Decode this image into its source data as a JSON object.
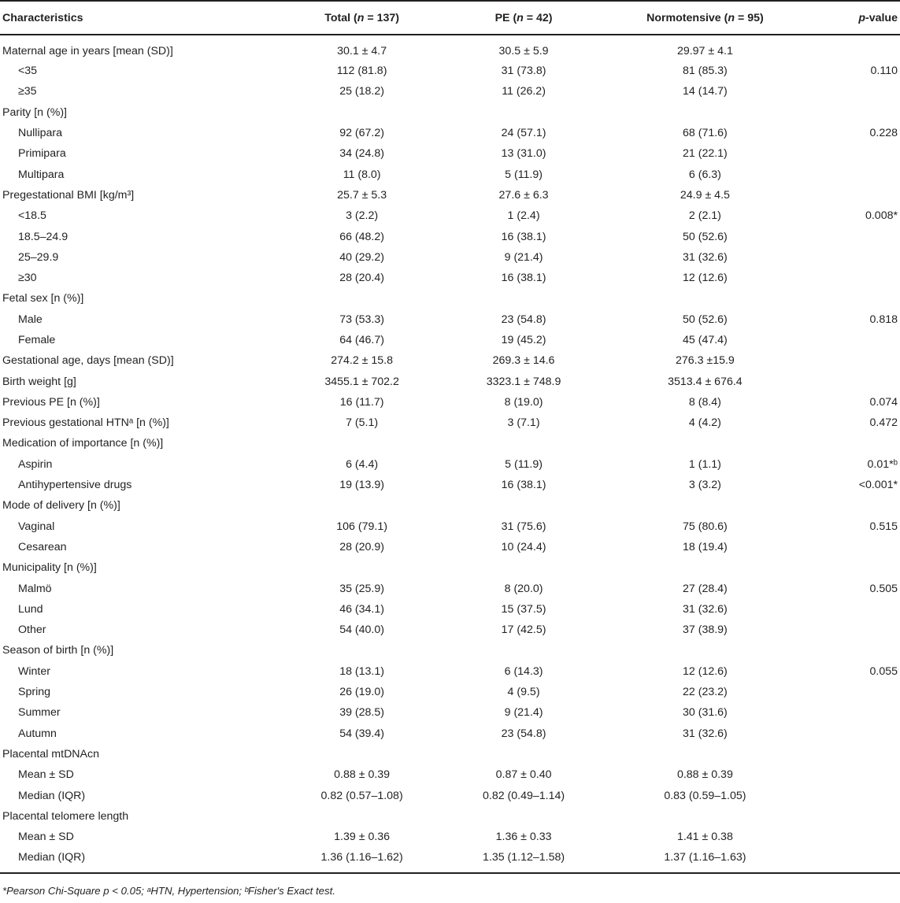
{
  "header": {
    "characteristics": "Characteristics",
    "total": "Total (",
    "total_n": "n",
    "total_rest": " = 137)",
    "pe": "PE (",
    "pe_n": "n",
    "pe_rest": " = 42)",
    "normo": "Normotensive (",
    "normo_n": "n",
    "normo_rest": " = 95)",
    "p": "p",
    "p_rest": "-value"
  },
  "rows": [
    {
      "label": "Maternal age in years [mean (SD)]",
      "total": "30.1 ± 4.7",
      "pe": "30.5 ± 5.9",
      "normo": "29.97 ± 4.1",
      "p": ""
    },
    {
      "label": "<35",
      "total": "112 (81.8)",
      "pe": "31 (73.8)",
      "normo": "81 (85.3)",
      "p": "0.110"
    },
    {
      "label": "≥35",
      "total": "25 (18.2)",
      "pe": "11 (26.2)",
      "normo": "14 (14.7)",
      "p": ""
    },
    {
      "label": "Parity [n (%)]",
      "total": "",
      "pe": "",
      "normo": "",
      "p": ""
    },
    {
      "label": "Nullipara",
      "total": "92 (67.2)",
      "pe": "24 (57.1)",
      "normo": "68 (71.6)",
      "p": "0.228"
    },
    {
      "label": "Primipara",
      "total": "34 (24.8)",
      "pe": "13 (31.0)",
      "normo": "21 (22.1)",
      "p": ""
    },
    {
      "label": "Multipara",
      "total": "11 (8.0)",
      "pe": "5 (11.9)",
      "normo": "6 (6.3)",
      "p": ""
    },
    {
      "label": "Pregestational BMI [kg/m³]",
      "total": "25.7 ± 5.3",
      "pe": "27.6 ± 6.3",
      "normo": "24.9 ± 4.5",
      "p": ""
    },
    {
      "label": "<18.5",
      "total": "3 (2.2)",
      "pe": "1 (2.4)",
      "normo": "2 (2.1)",
      "p": "0.008*"
    },
    {
      "label": "18.5–24.9",
      "total": "66 (48.2)",
      "pe": "16 (38.1)",
      "normo": "50 (52.6)",
      "p": ""
    },
    {
      "label": "25–29.9",
      "total": "40 (29.2)",
      "pe": "9 (21.4)",
      "normo": "31 (32.6)",
      "p": ""
    },
    {
      "label": "≥30",
      "total": "28 (20.4)",
      "pe": "16 (38.1)",
      "normo": "12 (12.6)",
      "p": ""
    },
    {
      "label": "Fetal sex [n (%)]",
      "total": "",
      "pe": "",
      "normo": "",
      "p": ""
    },
    {
      "label": "Male",
      "total": "73 (53.3)",
      "pe": "23 (54.8)",
      "normo": "50 (52.6)",
      "p": "0.818"
    },
    {
      "label": "Female",
      "total": "64 (46.7)",
      "pe": "19 (45.2)",
      "normo": "45 (47.4)",
      "p": ""
    },
    {
      "label": "Gestational age, days [mean (SD)]",
      "total": "274.2 ± 15.8",
      "pe": "269.3 ± 14.6",
      "normo": "276.3 ±15.9",
      "p": ""
    },
    {
      "label": "Birth weight [g]",
      "total": "3455.1 ± 702.2",
      "pe": "3323.1 ± 748.9",
      "normo": "3513.4 ± 676.4",
      "p": ""
    },
    {
      "label": "Previous PE [n (%)]",
      "total": "16 (11.7)",
      "pe": "8 (19.0)",
      "normo": "8 (8.4)",
      "p": "0.074"
    },
    {
      "label": "Previous gestational HTNᵃ [n (%)]",
      "total": "7 (5.1)",
      "pe": "3 (7.1)",
      "normo": "4 (4.2)",
      "p": "0.472"
    },
    {
      "label": "Medication of importance [n (%)]",
      "total": "",
      "pe": "",
      "normo": "",
      "p": ""
    },
    {
      "label": "Aspirin",
      "total": "6 (4.4)",
      "pe": "5 (11.9)",
      "normo": "1 (1.1)",
      "p": "0.01*ᵇ"
    },
    {
      "label": "Antihypertensive drugs",
      "total": "19 (13.9)",
      "pe": "16 (38.1)",
      "normo": "3 (3.2)",
      "p": "<0.001*"
    },
    {
      "label": "Mode of delivery [n (%)]",
      "total": "",
      "pe": "",
      "normo": "",
      "p": ""
    },
    {
      "label": "Vaginal",
      "total": "106 (79.1)",
      "pe": "31 (75.6)",
      "normo": "75 (80.6)",
      "p": "0.515"
    },
    {
      "label": "Cesarean",
      "total": "28 (20.9)",
      "pe": "10 (24.4)",
      "normo": "18 (19.4)",
      "p": ""
    },
    {
      "label": "Municipality [n (%)]",
      "total": "",
      "pe": "",
      "normo": "",
      "p": ""
    },
    {
      "label": "Malmö",
      "total": "35 (25.9)",
      "pe": "8 (20.0)",
      "normo": "27 (28.4)",
      "p": "0.505"
    },
    {
      "label": "Lund",
      "total": "46 (34.1)",
      "pe": "15 (37.5)",
      "normo": "31 (32.6)",
      "p": ""
    },
    {
      "label": "Other",
      "total": "54 (40.0)",
      "pe": "17 (42.5)",
      "normo": "37 (38.9)",
      "p": ""
    },
    {
      "label": "Season of birth [n (%)]",
      "total": "",
      "pe": "",
      "normo": "",
      "p": ""
    },
    {
      "label": "Winter",
      "total": "18 (13.1)",
      "pe": "6 (14.3)",
      "normo": "12 (12.6)",
      "p": "0.055"
    },
    {
      "label": "Spring",
      "total": "26 (19.0)",
      "pe": "4 (9.5)",
      "normo": "22 (23.2)",
      "p": ""
    },
    {
      "label": "Summer",
      "total": "39 (28.5)",
      "pe": "9 (21.4)",
      "normo": "30 (31.6)",
      "p": ""
    },
    {
      "label": "Autumn",
      "total": "54 (39.4)",
      "pe": "23 (54.8)",
      "normo": "31 (32.6)",
      "p": ""
    },
    {
      "label": "Placental mtDNAcn",
      "total": "",
      "pe": "",
      "normo": "",
      "p": ""
    },
    {
      "label": "Mean ± SD",
      "total": "0.88 ± 0.39",
      "pe": "0.87 ± 0.40",
      "normo": "0.88 ± 0.39",
      "p": ""
    },
    {
      "label": "Median (IQR)",
      "total": "0.82 (0.57–1.08)",
      "pe": "0.82 (0.49–1.14)",
      "normo": "0.83 (0.59–1.05)",
      "p": ""
    },
    {
      "label": "Placental telomere length",
      "total": "",
      "pe": "",
      "normo": "",
      "p": ""
    },
    {
      "label": "Mean ± SD",
      "total": "1.39 ± 0.36",
      "pe": "1.36 ± 0.33",
      "normo": "1.41 ± 0.38",
      "p": ""
    },
    {
      "label": "Median (IQR)",
      "total": "1.36 (1.16–1.62)",
      "pe": "1.35 (1.12–1.58)",
      "normo": "1.37 (1.16–1.63)",
      "p": ""
    }
  ],
  "indented": [
    1,
    2,
    4,
    5,
    6,
    8,
    9,
    10,
    11,
    13,
    14,
    20,
    21,
    23,
    24,
    26,
    27,
    28,
    30,
    31,
    32,
    33,
    35,
    36,
    38,
    39
  ],
  "footnote": "*Pearson Chi-Square p < 0.05; ᵃHTN, Hypertension; ᵇFisher's Exact test."
}
